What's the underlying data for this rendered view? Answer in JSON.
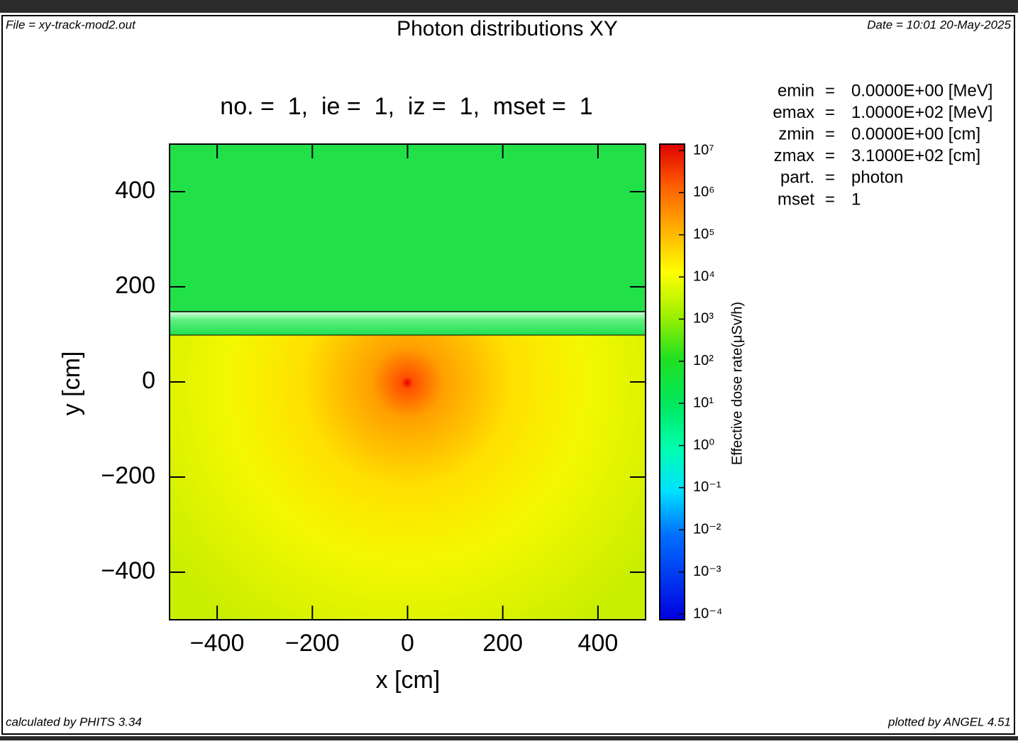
{
  "header": {
    "file": "File = xy-track-mod2.out",
    "date": "Date = 10:01 20-May-2025",
    "footer_left": "calculated by PHITS 3.34",
    "footer_right": "plotted by ANGEL 4.51"
  },
  "info": [
    [
      "emin",
      "=",
      "0.0000E+00 [MeV]"
    ],
    [
      "emax",
      "=",
      "1.0000E+02 [MeV]"
    ],
    [
      "zmin",
      "=",
      "0.0000E+00 [cm]"
    ],
    [
      "zmax",
      "=",
      "3.1000E+02 [cm]"
    ],
    [
      "part.",
      "=",
      "photon"
    ],
    [
      "mset",
      "=",
      "1"
    ]
  ],
  "chart_data": {
    "type": "heatmap",
    "title": "Photon distributions XY",
    "subtitle": "no. =  1,  ie =  1,  iz =  1,  mset =  1",
    "x_label": "x [cm]",
    "y_label": "y [cm]",
    "xlim": [
      -500,
      500
    ],
    "ylim": [
      -500,
      500
    ],
    "xticks": [
      {
        "value": -400,
        "label": "−400"
      },
      {
        "value": -200,
        "label": "−200"
      },
      0,
      200,
      400
    ],
    "yticks": [
      {
        "value": -400,
        "label": "−400"
      },
      {
        "value": -200,
        "label": "−200"
      },
      0,
      200,
      400
    ],
    "colorbar": {
      "label": "Effective dose rate(μSv/h)",
      "log": true,
      "lim": [
        0.0001,
        10000000
      ],
      "ticks": [
        {
          "value": 10000000,
          "label": "10⁷"
        },
        {
          "value": 1000000,
          "label": "10⁶"
        },
        {
          "value": 100000,
          "label": "10⁵"
        },
        {
          "value": 10000,
          "label": "10⁴"
        },
        {
          "value": 1000,
          "label": "10³"
        },
        {
          "value": 100,
          "label": "10²"
        },
        {
          "value": 10,
          "label": "10¹"
        },
        {
          "value": 1,
          "label": "10⁰"
        },
        {
          "value": 0.1,
          "label": "10⁻¹"
        },
        {
          "value": 0.01,
          "label": "10⁻²"
        },
        {
          "value": 0.001,
          "label": "10⁻³"
        },
        {
          "value": 0.0001,
          "label": "10⁻⁴"
        }
      ]
    }
  }
}
